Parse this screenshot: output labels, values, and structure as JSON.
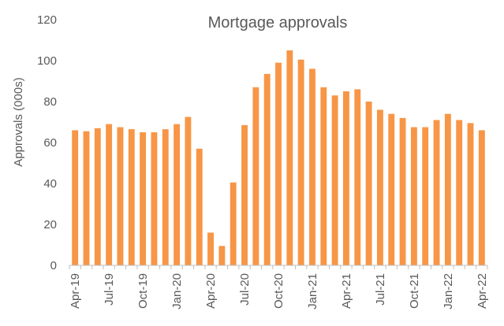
{
  "chart_data": {
    "type": "bar",
    "title": "Mortgage approvals",
    "xlabel": "",
    "ylabel": "Approvals (000s)",
    "ylim": [
      0,
      120
    ],
    "yticks": [
      0,
      20,
      40,
      60,
      80,
      100,
      120
    ],
    "grid": false,
    "legend": "none",
    "bar_color": "#F79646",
    "categories": [
      "Apr-19",
      "May-19",
      "Jun-19",
      "Jul-19",
      "Aug-19",
      "Sep-19",
      "Oct-19",
      "Nov-19",
      "Dec-19",
      "Jan-20",
      "Feb-20",
      "Mar-20",
      "Apr-20",
      "May-20",
      "Jun-20",
      "Jul-20",
      "Aug-20",
      "Sep-20",
      "Oct-20",
      "Nov-20",
      "Dec-20",
      "Jan-21",
      "Feb-21",
      "Mar-21",
      "Apr-21",
      "May-21",
      "Jun-21",
      "Jul-21",
      "Aug-21",
      "Sep-21",
      "Oct-21",
      "Nov-21",
      "Dec-21",
      "Jan-22",
      "Feb-22",
      "Mar-22",
      "Apr-22"
    ],
    "x_tick_labels": [
      "Apr-19",
      "Jul-19",
      "Oct-19",
      "Jan-20",
      "Apr-20",
      "Jul-20",
      "Oct-20",
      "Jan-21",
      "Apr-21",
      "Jul-21",
      "Oct-21",
      "Jan-22",
      "Apr-22"
    ],
    "values": [
      66,
      65.5,
      67,
      69,
      67.5,
      66.5,
      65,
      65,
      66.5,
      69,
      72.5,
      57,
      16,
      9.5,
      40.5,
      68.5,
      87,
      93.5,
      99,
      105,
      100.5,
      96,
      87,
      83,
      85,
      86,
      80,
      76,
      74,
      72,
      67.5,
      67.5,
      71,
      74,
      71,
      69.5,
      66
    ]
  }
}
